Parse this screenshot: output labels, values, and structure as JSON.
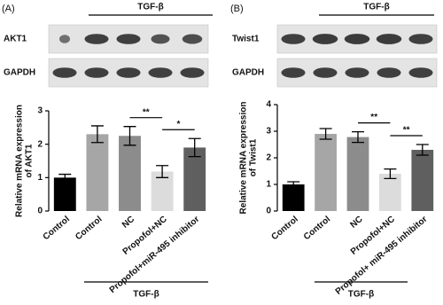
{
  "panels": [
    {
      "label": "(A)",
      "treatment": "TGF-β",
      "blot_rows": [
        "AKT1",
        "GAPDH"
      ],
      "bottom_treatment": "TGF-β"
    },
    {
      "label": "(B)",
      "treatment": "TGF-β",
      "blot_rows": [
        "Twist1",
        "GAPDH"
      ],
      "bottom_treatment": "TGF-β"
    }
  ],
  "chart_data": [
    {
      "type": "bar",
      "y_label": [
        "Relative mRNA expression",
        "of AKT1"
      ],
      "categories": [
        "Control",
        "Control",
        "NC",
        "Propofol+NC",
        "Propofol+miR-495 inhibitor"
      ],
      "values": [
        1.0,
        2.3,
        2.25,
        1.18,
        1.9
      ],
      "errors": [
        0.1,
        0.25,
        0.28,
        0.18,
        0.27
      ],
      "colors": [
        "#000000",
        "#a6a6a6",
        "#8c8c8c",
        "#dcdcdc",
        "#5f5f5f"
      ],
      "ylim": [
        0,
        3
      ],
      "yticks": [
        0,
        1,
        2,
        3
      ],
      "annotations": [
        "**",
        "*"
      ]
    },
    {
      "type": "bar",
      "y_label": [
        "Relative mRNA expression",
        "of Twist1"
      ],
      "categories": [
        "Control",
        "Control",
        "NC",
        "Propofol+NC",
        "Propofol+ miR-495 inhibitor"
      ],
      "values": [
        1.0,
        2.9,
        2.78,
        1.4,
        2.3
      ],
      "errors": [
        0.1,
        0.2,
        0.2,
        0.18,
        0.2
      ],
      "colors": [
        "#000000",
        "#a6a6a6",
        "#8c8c8c",
        "#dcdcdc",
        "#5f5f5f"
      ],
      "ylim": [
        0,
        4
      ],
      "yticks": [
        0,
        1,
        2,
        3,
        4
      ],
      "annotations": [
        "**",
        "**"
      ]
    }
  ]
}
